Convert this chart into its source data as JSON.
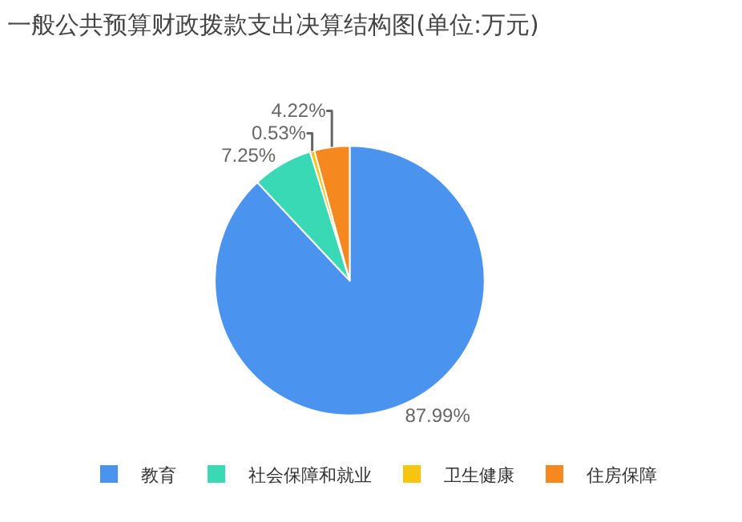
{
  "chart_data": {
    "type": "pie",
    "title": "一般公共预算财政拨款支出决算结构图(单位:万元)",
    "categories": [
      "教育",
      "社会保障和就业",
      "卫生健康",
      "住房保障"
    ],
    "values": [
      87.99,
      7.25,
      0.53,
      4.22
    ],
    "value_labels": [
      "87.99%",
      "7.25%",
      "0.53%",
      "4.22%"
    ],
    "colors": [
      "#4a94f0",
      "#3ad9b6",
      "#f7c40f",
      "#f5891f"
    ],
    "legend": "bottom"
  }
}
